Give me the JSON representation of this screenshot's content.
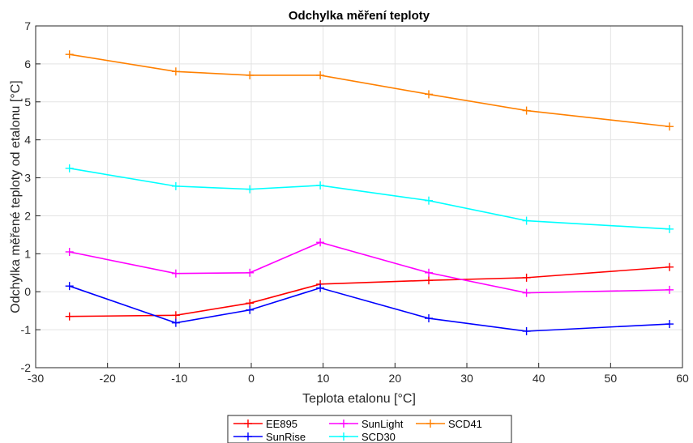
{
  "chart_data": {
    "type": "line",
    "title": "Odchylka měření teploty",
    "xlabel": "Teplota etalonu [°C]",
    "ylabel": "Odchylka měřené teploty od etalonu [°C]",
    "xlim": [
      -30,
      60
    ],
    "ylim": [
      -2,
      7
    ],
    "xticks": [
      "-30",
      "-20",
      "-10",
      "0",
      "10",
      "20",
      "30",
      "40",
      "50",
      "60"
    ],
    "yticks": [
      "-2",
      "-1",
      "0",
      "1",
      "2",
      "3",
      "4",
      "5",
      "6",
      "7"
    ],
    "grid": true,
    "legend_position": "bottom-outside",
    "x": [
      -25.3,
      -10.5,
      -0.2,
      9.6,
      24.7,
      38.3,
      58.2
    ],
    "series": [
      {
        "name": "EE895",
        "color": "#ff0000",
        "values": [
          -0.65,
          -0.62,
          -0.3,
          0.2,
          0.3,
          0.37,
          0.65
        ]
      },
      {
        "name": "SunRise",
        "color": "#0000ff",
        "values": [
          0.15,
          -0.82,
          -0.48,
          0.1,
          -0.7,
          -1.04,
          -0.85
        ]
      },
      {
        "name": "SunLight",
        "color": "#ff00ff",
        "values": [
          1.05,
          0.48,
          0.5,
          1.3,
          0.5,
          -0.03,
          0.05
        ]
      },
      {
        "name": "SCD30",
        "color": "#00ffff",
        "values": [
          3.25,
          2.78,
          2.7,
          2.8,
          2.4,
          1.87,
          1.65
        ]
      },
      {
        "name": "SCD41",
        "color": "#ff8000",
        "values": [
          6.25,
          5.8,
          5.7,
          5.7,
          5.2,
          4.77,
          4.35
        ]
      }
    ]
  }
}
